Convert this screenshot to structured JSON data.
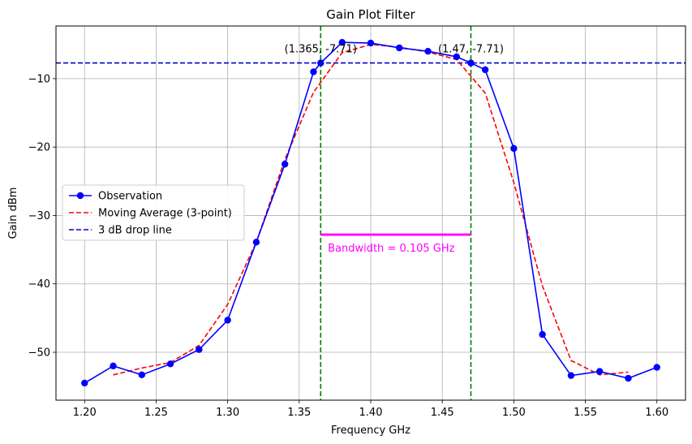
{
  "chart_data": {
    "type": "line",
    "title": "Gain Plot Filter",
    "xlabel": "Frequency GHz",
    "ylabel": "Gain dBm",
    "xlim": [
      1.18,
      1.62
    ],
    "ylim": [
      -57,
      -2.3
    ],
    "xticks": [
      1.2,
      1.25,
      1.3,
      1.35,
      1.4,
      1.45,
      1.5,
      1.55,
      1.6
    ],
    "xtick_labels": [
      "1.20",
      "1.25",
      "1.30",
      "1.35",
      "1.40",
      "1.45",
      "1.50",
      "1.55",
      "1.60"
    ],
    "yticks": [
      -50,
      -40,
      -30,
      -20,
      -10
    ],
    "ytick_labels": [
      "−50",
      "−40",
      "−30",
      "−20",
      "−10"
    ],
    "grid": true,
    "legend_position": "center-left",
    "series": [
      {
        "name": "Observation",
        "style": "solid-markers",
        "color": "#0000ff",
        "x": [
          1.2,
          1.22,
          1.24,
          1.26,
          1.28,
          1.3,
          1.32,
          1.34,
          1.36,
          1.365,
          1.38,
          1.4,
          1.42,
          1.44,
          1.46,
          1.47,
          1.48,
          1.5,
          1.52,
          1.54,
          1.56,
          1.58,
          1.6
        ],
        "y": [
          -54.5,
          -52.0,
          -53.3,
          -51.7,
          -49.6,
          -45.3,
          -33.9,
          -22.5,
          -9.0,
          -7.71,
          -4.7,
          -4.8,
          -5.5,
          -6.0,
          -6.8,
          -7.71,
          -8.7,
          -20.2,
          -47.4,
          -53.4,
          -52.8,
          -53.8,
          -52.2
        ]
      },
      {
        "name": "Moving Average (3-point)",
        "style": "dashed",
        "color": "#ff0000",
        "x": [
          1.22,
          1.24,
          1.26,
          1.28,
          1.3,
          1.32,
          1.34,
          1.36,
          1.38,
          1.4,
          1.42,
          1.44,
          1.46,
          1.48,
          1.5,
          1.52,
          1.54,
          1.56,
          1.58
        ],
        "y": [
          -53.3,
          -52.3,
          -51.5,
          -49.0,
          -43.0,
          -33.9,
          -21.8,
          -12.0,
          -6.2,
          -5.0,
          -5.4,
          -6.1,
          -7.2,
          -12.1,
          -25.2,
          -40.3,
          -51.2,
          -53.3,
          -52.9
        ]
      },
      {
        "name": "3 dB drop line",
        "style": "dashed-horizontal",
        "color": "#0000cc",
        "y": -7.71
      }
    ],
    "vertical_lines": [
      {
        "x": 1.365,
        "color": "#008000",
        "style": "dashed"
      },
      {
        "x": 1.47,
        "color": "#008000",
        "style": "dashed"
      }
    ],
    "bandwidth_bar": {
      "x1": 1.365,
      "x2": 1.47,
      "y": -32.8,
      "color": "#ff00ff"
    },
    "annotations": [
      {
        "text": "(1.365, -7.71)",
        "x": 1.365,
        "y": -7.71
      },
      {
        "text": "(1.47, -7.71)",
        "x": 1.47,
        "y": -7.71
      },
      {
        "text": "Bandwidth = 0.105 GHz",
        "x": 1.37,
        "y": -34.8,
        "color": "#ff00ff"
      }
    ]
  }
}
